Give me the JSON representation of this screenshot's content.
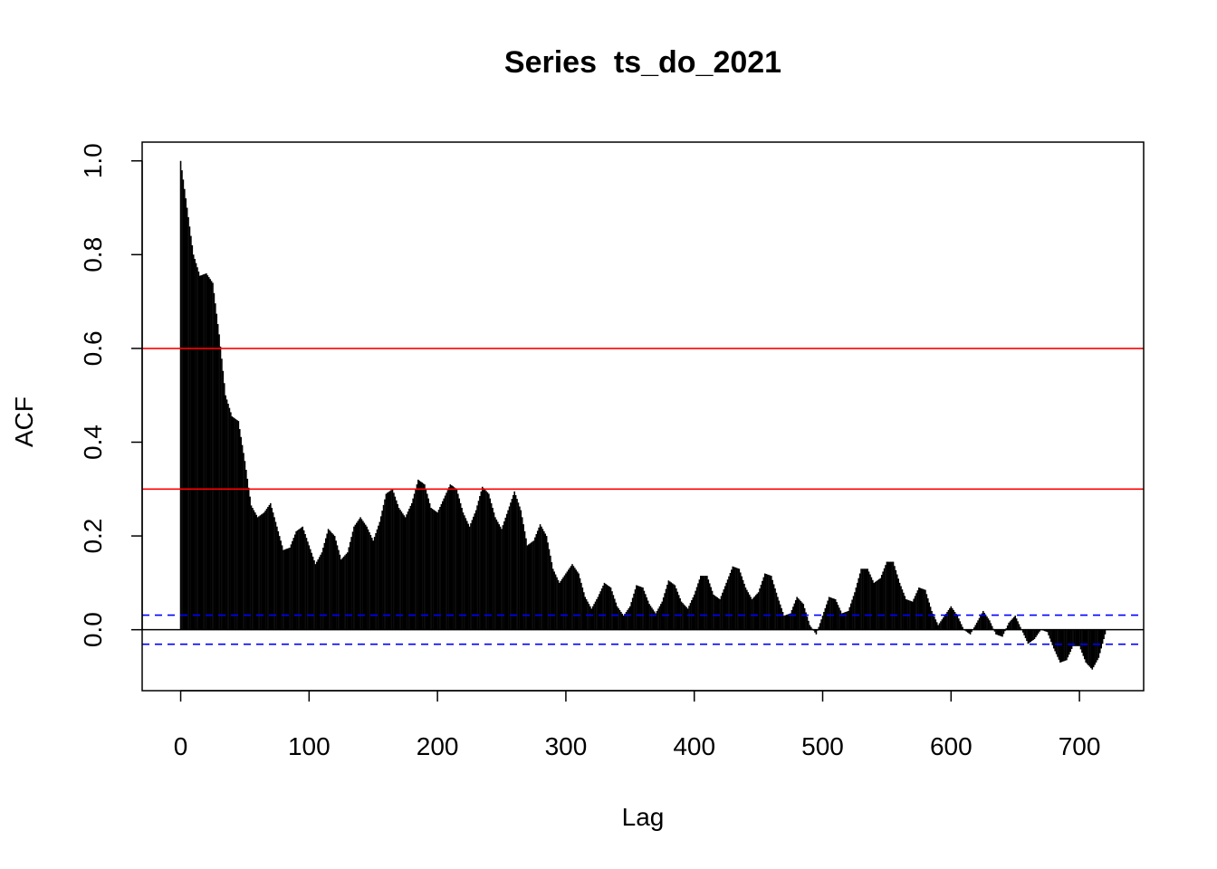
{
  "chart_data": {
    "type": "bar",
    "title": "Series  ts_do_2021",
    "xlabel": "Lag",
    "ylabel": "ACF",
    "xlim": [
      -30,
      750
    ],
    "ylim": [
      -0.13,
      1.04
    ],
    "x_ticks": [
      0,
      100,
      200,
      300,
      400,
      500,
      600,
      700
    ],
    "x_tick_labels": [
      "0",
      "100",
      "200",
      "300",
      "400",
      "500",
      "600",
      "700"
    ],
    "y_ticks": [
      0.0,
      0.2,
      0.4,
      0.6,
      0.8,
      1.0
    ],
    "y_tick_labels": [
      "0.0",
      "0.2",
      "0.4",
      "0.6",
      "0.8",
      "1.0"
    ],
    "grid": false,
    "reference_lines": [
      {
        "y": 0.6,
        "color": "#ff0000",
        "style": "solid"
      },
      {
        "y": 0.3,
        "color": "#ff0000",
        "style": "solid"
      }
    ],
    "confidence_bounds": {
      "upper": 0.031,
      "lower": -0.031,
      "color": "#0000ff",
      "style": "dashed"
    },
    "bar_color": "#000000",
    "series": [
      {
        "lags": [
          0,
          5,
          10,
          15,
          20,
          25,
          30,
          35,
          40,
          45,
          50,
          55,
          60,
          65,
          70,
          75,
          80,
          85,
          90,
          95,
          100,
          105,
          110,
          115,
          120,
          125,
          130,
          135,
          140,
          145,
          150,
          155,
          160,
          165,
          170,
          175,
          180,
          185,
          190,
          195,
          200,
          205,
          210,
          215,
          220,
          225,
          230,
          235,
          240,
          245,
          250,
          255,
          260,
          265,
          270,
          275,
          280,
          285,
          290,
          295,
          300,
          305,
          310,
          315,
          320,
          325,
          330,
          335,
          340,
          345,
          350,
          355,
          360,
          365,
          370,
          375,
          380,
          385,
          390,
          395,
          400,
          405,
          410,
          415,
          420,
          425,
          430,
          435,
          440,
          445,
          450,
          455,
          460,
          465,
          470,
          475,
          480,
          485,
          490,
          495,
          500,
          505,
          510,
          515,
          520,
          525,
          530,
          535,
          540,
          545,
          550,
          555,
          560,
          565,
          570,
          575,
          580,
          585,
          590,
          595,
          600,
          605,
          610,
          615,
          620,
          625,
          630,
          635,
          640,
          645,
          650,
          655,
          660,
          665,
          670,
          675,
          680,
          685,
          690,
          695,
          700,
          705,
          710,
          715,
          720
        ],
        "values": [
          1.0,
          0.9,
          0.8,
          0.755,
          0.76,
          0.74,
          0.63,
          0.5,
          0.455,
          0.445,
          0.36,
          0.265,
          0.24,
          0.25,
          0.27,
          0.22,
          0.17,
          0.175,
          0.21,
          0.22,
          0.18,
          0.14,
          0.165,
          0.215,
          0.2,
          0.15,
          0.165,
          0.22,
          0.24,
          0.22,
          0.19,
          0.23,
          0.29,
          0.3,
          0.26,
          0.24,
          0.27,
          0.32,
          0.31,
          0.26,
          0.25,
          0.28,
          0.31,
          0.3,
          0.25,
          0.22,
          0.255,
          0.305,
          0.29,
          0.24,
          0.215,
          0.255,
          0.295,
          0.255,
          0.18,
          0.19,
          0.225,
          0.2,
          0.13,
          0.1,
          0.12,
          0.14,
          0.12,
          0.07,
          0.045,
          0.07,
          0.1,
          0.09,
          0.05,
          0.03,
          0.05,
          0.095,
          0.09,
          0.055,
          0.035,
          0.06,
          0.105,
          0.095,
          0.06,
          0.045,
          0.075,
          0.115,
          0.115,
          0.075,
          0.065,
          0.1,
          0.135,
          0.13,
          0.09,
          0.065,
          0.08,
          0.12,
          0.115,
          0.07,
          0.03,
          0.035,
          0.07,
          0.055,
          0.01,
          -0.01,
          0.03,
          0.07,
          0.065,
          0.035,
          0.04,
          0.08,
          0.13,
          0.13,
          0.1,
          0.11,
          0.145,
          0.145,
          0.1,
          0.065,
          0.06,
          0.09,
          0.085,
          0.04,
          0.01,
          0.03,
          0.05,
          0.03,
          0.0,
          -0.01,
          0.015,
          0.04,
          0.02,
          -0.01,
          -0.015,
          0.015,
          0.03,
          0.0,
          -0.03,
          -0.02,
          0.0,
          -0.005,
          -0.04,
          -0.07,
          -0.065,
          -0.035,
          -0.035,
          -0.07,
          -0.085,
          -0.06,
          -0.01
        ]
      }
    ]
  }
}
